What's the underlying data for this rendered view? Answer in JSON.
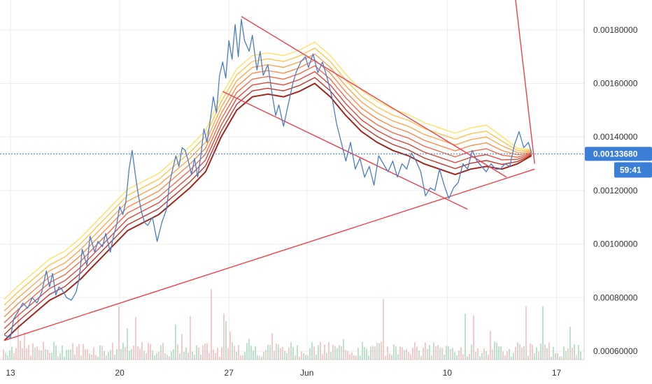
{
  "chart_data": {
    "type": "line",
    "title": "",
    "xlabel": "",
    "ylabel": "",
    "x_ticks": [
      "13",
      "20",
      "27",
      "Jun",
      "10",
      "17"
    ],
    "x_range_days": [
      12.6,
      19.4
    ],
    "ylim": [
      0.00058,
      0.0019
    ],
    "y_ticks": [
      "0.00060000",
      "0.00080000",
      "0.00100000",
      "0.00120000",
      "0.00140000",
      "0.00160000",
      "0.00180000"
    ],
    "grid": true,
    "last_price": "0.00133680",
    "countdown": "59:41",
    "colors": {
      "price_line": "#4a7cc9",
      "trendline": "#f0404a",
      "price_badge": "#3a7ed6",
      "countdown_badge": "#3a7ed6",
      "ribbon": [
        "#ffe066",
        "#ffc44d",
        "#ffa64d",
        "#ff8a4a",
        "#f56a45",
        "#e04a3a",
        "#c43528",
        "#a0251a"
      ],
      "volume_up": "#9fd6b8",
      "volume_down": "#f2b3b3"
    },
    "series": [
      {
        "values": [
          [
            12.6,
            0.00066
          ],
          [
            13.0,
            0.00065
          ],
          [
            13.2,
            0.00072
          ],
          [
            13.5,
            0.00075
          ],
          [
            13.8,
            0.00078
          ],
          [
            14.1,
            0.00076
          ],
          [
            14.4,
            0.0008
          ],
          [
            14.7,
            0.00078
          ],
          [
            15.0,
            0.00082
          ],
          [
            15.3,
            0.0009
          ],
          [
            15.5,
            0.00084
          ],
          [
            15.7,
            0.00089
          ],
          [
            15.9,
            0.00081
          ],
          [
            16.1,
            0.00084
          ],
          [
            16.3,
            0.00083
          ],
          [
            16.6,
            0.0008
          ],
          [
            16.9,
            0.00079
          ],
          [
            17.2,
            0.00082
          ],
          [
            17.4,
            0.00087
          ],
          [
            17.6,
            0.00098
          ],
          [
            17.9,
            0.00092
          ],
          [
            18.1,
            0.00103
          ],
          [
            18.4,
            0.00097
          ],
          [
            18.6,
            0.00101
          ],
          [
            18.9,
            0.00099
          ],
          [
            19.1,
            0.00104
          ],
          [
            19.4,
            0.00097
          ],
          [
            19.6,
            0.00103
          ],
          [
            19.8,
            0.00107
          ],
          [
            20.0,
            0.00114
          ],
          [
            20.2,
            0.00111
          ],
          [
            20.4,
            0.00116
          ],
          [
            20.6,
            0.00128
          ],
          [
            20.8,
            0.00135
          ],
          [
            21.0,
            0.00126
          ],
          [
            21.2,
            0.00118
          ],
          [
            21.4,
            0.00112
          ],
          [
            21.6,
            0.00108
          ],
          [
            21.8,
            0.00107
          ],
          [
            22.1,
            0.0011
          ],
          [
            22.4,
            0.00101
          ],
          [
            22.7,
            0.00108
          ],
          [
            23.0,
            0.00113
          ],
          [
            23.2,
            0.00123
          ],
          [
            23.4,
            0.00128
          ],
          [
            23.6,
            0.00133
          ],
          [
            23.8,
            0.00129
          ],
          [
            24.0,
            0.00136
          ],
          [
            24.2,
            0.00135
          ],
          [
            24.4,
            0.00131
          ],
          [
            24.6,
            0.00126
          ],
          [
            24.8,
            0.00132
          ],
          [
            25.0,
            0.00125
          ],
          [
            25.2,
            0.00133
          ],
          [
            25.4,
            0.00143
          ],
          [
            25.6,
            0.00138
          ],
          [
            25.8,
            0.00146
          ],
          [
            26.0,
            0.00155
          ],
          [
            26.2,
            0.00149
          ],
          [
            26.4,
            0.00163
          ],
          [
            26.6,
            0.00168
          ],
          [
            26.8,
            0.00162
          ],
          [
            27.0,
            0.00176
          ],
          [
            27.2,
            0.00169
          ],
          [
            27.4,
            0.00182
          ],
          [
            27.6,
            0.0017
          ],
          [
            27.8,
            0.00184
          ],
          [
            28.0,
            0.00176
          ],
          [
            28.3,
            0.00172
          ],
          [
            28.5,
            0.00178
          ],
          [
            28.8,
            0.00165
          ],
          [
            29.0,
            0.00172
          ],
          [
            29.2,
            0.00163
          ],
          [
            29.5,
            0.00167
          ],
          [
            29.8,
            0.00155
          ],
          [
            30.0,
            0.00148
          ],
          [
            30.2,
            0.00152
          ],
          [
            30.5,
            0.00144
          ],
          [
            30.8,
            0.00152
          ],
          [
            31.1,
            0.0016
          ],
          [
            31.3,
            0.00164
          ],
          [
            31.6,
            0.00168
          ],
          [
            31.9,
            0.0017
          ],
          [
            32.1,
            0.00166
          ],
          [
            32.4,
            0.00171
          ],
          [
            32.7,
            0.00164
          ],
          [
            33.0,
            0.00168
          ],
          [
            33.3,
            0.00162
          ],
          [
            33.6,
            0.00155
          ],
          [
            33.9,
            0.00145
          ],
          [
            34.2,
            0.00138
          ],
          [
            34.5,
            0.00131
          ],
          [
            34.8,
            0.00138
          ],
          [
            35.1,
            0.00128
          ],
          [
            35.4,
            0.00132
          ],
          [
            35.7,
            0.00125
          ],
          [
            36.0,
            0.00129
          ],
          [
            36.3,
            0.00122
          ],
          [
            36.6,
            0.00133
          ],
          [
            36.9,
            0.0013
          ],
          [
            37.2,
            0.00127
          ],
          [
            37.5,
            0.00131
          ],
          [
            37.8,
            0.00125
          ],
          [
            38.1,
            0.0013
          ],
          [
            38.4,
            0.00128
          ],
          [
            38.7,
            0.00134
          ],
          [
            39.0,
            0.00131
          ],
          [
            39.3,
            0.00127
          ],
          [
            39.6,
            0.00118
          ],
          [
            39.9,
            0.00121
          ],
          [
            40.2,
            0.0012
          ],
          [
            40.5,
            0.00128
          ],
          [
            40.8,
            0.00122
          ],
          [
            41.1,
            0.00117
          ],
          [
            41.4,
            0.00121
          ],
          [
            41.7,
            0.00123
          ],
          [
            42.0,
            0.0013
          ],
          [
            42.3,
            0.00128
          ],
          [
            42.6,
            0.00135
          ],
          [
            42.9,
            0.00131
          ],
          [
            43.2,
            0.00129
          ],
          [
            43.5,
            0.00127
          ],
          [
            43.8,
            0.0013
          ],
          [
            44.1,
            0.00128
          ],
          [
            44.4,
            0.00128
          ],
          [
            44.7,
            0.0013
          ],
          [
            45.0,
            0.00129
          ],
          [
            45.3,
            0.00137
          ],
          [
            45.6,
            0.00142
          ],
          [
            45.9,
            0.00136
          ],
          [
            46.2,
            0.00138
          ],
          [
            46.4,
            0.00134
          ]
        ]
      }
    ],
    "ribbon_baseline": [
      [
        12.6,
        0.00064
      ],
      [
        13.5,
        0.00069
      ],
      [
        14.5,
        0.00074
      ],
      [
        15.5,
        0.00079
      ],
      [
        16.5,
        0.00082
      ],
      [
        17.5,
        0.00087
      ],
      [
        18.5,
        0.00093
      ],
      [
        19.5,
        0.00099
      ],
      [
        20.5,
        0.00105
      ],
      [
        21.5,
        0.00108
      ],
      [
        22.5,
        0.00111
      ],
      [
        23.5,
        0.00116
      ],
      [
        24.5,
        0.00121
      ],
      [
        25.5,
        0.00127
      ],
      [
        26.5,
        0.0014
      ],
      [
        27.5,
        0.0015
      ],
      [
        28.5,
        0.00155
      ],
      [
        29.5,
        0.00156
      ],
      [
        30.5,
        0.00155
      ],
      [
        31.5,
        0.00157
      ],
      [
        32.5,
        0.0016
      ],
      [
        33.5,
        0.00155
      ],
      [
        34.5,
        0.00148
      ],
      [
        35.5,
        0.00142
      ],
      [
        36.5,
        0.00138
      ],
      [
        37.5,
        0.00135
      ],
      [
        38.5,
        0.00133
      ],
      [
        39.5,
        0.0013
      ],
      [
        40.5,
        0.00128
      ],
      [
        41.5,
        0.00126
      ],
      [
        42.5,
        0.00128
      ],
      [
        43.5,
        0.00129
      ],
      [
        44.5,
        0.00128
      ],
      [
        45.5,
        0.0013
      ],
      [
        46.4,
        0.00133
      ]
    ],
    "trendlines": [
      {
        "from": [
          12.6,
          0.00064
        ],
        "to": [
          46.6,
          0.00128
        ]
      },
      {
        "from": [
          27.8,
          0.00185
        ],
        "to": [
          44.8,
          0.00125
        ]
      },
      {
        "from": [
          26.6,
          0.00157
        ],
        "to": [
          42.3,
          0.00113
        ]
      },
      {
        "from": [
          45.2,
          0.002
        ],
        "to": [
          46.6,
          0.0013
        ]
      }
    ]
  }
}
